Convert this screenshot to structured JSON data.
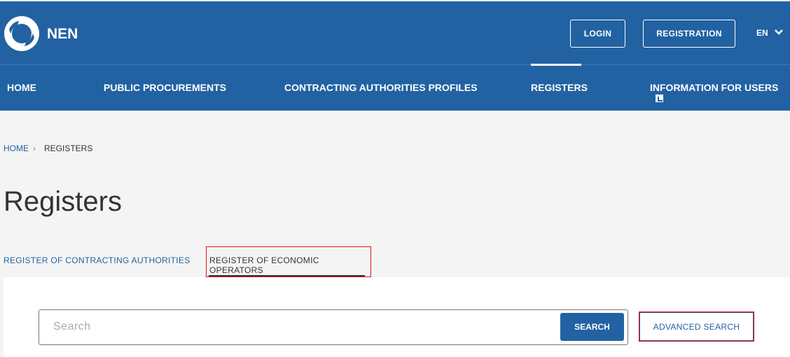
{
  "header": {
    "brand": "NEN",
    "login": "LOGIN",
    "registration": "REGISTRATION",
    "language": "EN"
  },
  "nav": {
    "items": [
      {
        "label": "HOME"
      },
      {
        "label": "PUBLIC PROCUREMENTS"
      },
      {
        "label": "CONTRACTING AUTHORITIES PROFILES"
      },
      {
        "label": "REGISTERS"
      },
      {
        "label": "INFORMATION FOR USERS"
      }
    ],
    "active": "REGISTERS"
  },
  "breadcrumb": {
    "home": "HOME",
    "separator": "›",
    "current": "REGISTERS"
  },
  "page": {
    "title": "Registers"
  },
  "tabs": [
    {
      "label": "REGISTER OF CONTRACTING AUTHORITIES"
    },
    {
      "label": "REGISTER OF ECONOMIC OPERATORS",
      "active": true
    }
  ],
  "search": {
    "placeholder": "Search",
    "button": "SEARCH",
    "advanced": "ADVANCED SEARCH"
  },
  "colors": {
    "brand": "#2262a2",
    "background": "#f4f4f4",
    "highlight": "#e0131b"
  }
}
